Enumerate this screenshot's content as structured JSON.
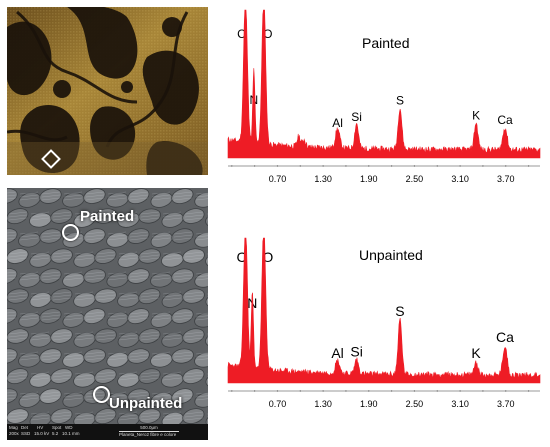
{
  "colors": {
    "spectrum": "#ee1c25",
    "photo_bg": "#3a2a10",
    "sem_bg": "#5d6063"
  },
  "sem": {
    "label_painted": "Painted",
    "label_unpainted": "Unpainted",
    "info_bar": {
      "row1": [
        "Mag",
        "Det",
        "HV",
        "Spot",
        "WD"
      ],
      "row2": [
        "200x",
        "SSD",
        "15.0 kV",
        "5.2",
        "10.1 mm"
      ],
      "scale": "500.0μm",
      "caption": "Planeta_Nero2 fibre e colore"
    }
  },
  "ticks": [
    "0.70",
    "1.30",
    "1.90",
    "2.50",
    "3.10",
    "3.70"
  ],
  "chart_data": [
    {
      "type": "line",
      "title": "Painted",
      "x_ticks": [
        0.7,
        1.3,
        1.9,
        2.5,
        3.1,
        3.7
      ],
      "xlim": [
        0.05,
        4.15
      ],
      "peak_labels": [
        {
          "text": "C",
          "x": 0.28
        },
        {
          "text": "O",
          "x": 0.52
        },
        {
          "text": "N",
          "x": 0.39
        },
        {
          "text": "Al",
          "x": 1.49
        },
        {
          "text": "Si",
          "x": 1.74
        },
        {
          "text": "S",
          "x": 2.31
        },
        {
          "text": "K",
          "x": 3.31
        },
        {
          "text": "Ca",
          "x": 3.69
        }
      ],
      "peaks": [
        {
          "x": 0.28,
          "h": 1.0,
          "w": 0.035
        },
        {
          "x": 0.39,
          "h": 0.5,
          "w": 0.02
        },
        {
          "x": 0.52,
          "h": 1.0,
          "w": 0.035
        },
        {
          "x": 0.98,
          "h": 0.07,
          "w": 0.03
        },
        {
          "x": 1.05,
          "h": 0.05,
          "w": 0.03
        },
        {
          "x": 1.49,
          "h": 0.13,
          "w": 0.04
        },
        {
          "x": 1.74,
          "h": 0.17,
          "w": 0.035
        },
        {
          "x": 2.31,
          "h": 0.28,
          "w": 0.035
        },
        {
          "x": 3.31,
          "h": 0.18,
          "w": 0.035
        },
        {
          "x": 3.69,
          "h": 0.15,
          "w": 0.04
        }
      ]
    },
    {
      "type": "line",
      "title": "Unpainted",
      "x_ticks": [
        0.7,
        1.3,
        1.9,
        2.5,
        3.1,
        3.7
      ],
      "xlim": [
        0.05,
        4.15
      ],
      "peak_labels": [
        {
          "text": "C",
          "x": 0.28
        },
        {
          "text": "O",
          "x": 0.52
        },
        {
          "text": "N",
          "x": 0.37
        },
        {
          "text": "Al",
          "x": 1.49
        },
        {
          "text": "Si",
          "x": 1.74
        },
        {
          "text": "S",
          "x": 2.31
        },
        {
          "text": "K",
          "x": 3.31
        },
        {
          "text": "Ca",
          "x": 3.69
        }
      ],
      "peaks": [
        {
          "x": 0.28,
          "h": 1.0,
          "w": 0.035
        },
        {
          "x": 0.37,
          "h": 0.55,
          "w": 0.02
        },
        {
          "x": 0.52,
          "h": 1.0,
          "w": 0.035
        },
        {
          "x": 1.49,
          "h": 0.09,
          "w": 0.04
        },
        {
          "x": 1.74,
          "h": 0.1,
          "w": 0.035
        },
        {
          "x": 2.31,
          "h": 0.38,
          "w": 0.035
        },
        {
          "x": 3.31,
          "h": 0.09,
          "w": 0.035
        },
        {
          "x": 3.69,
          "h": 0.2,
          "w": 0.04
        }
      ]
    }
  ]
}
